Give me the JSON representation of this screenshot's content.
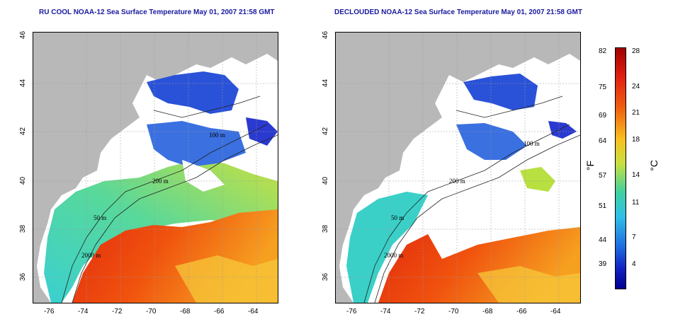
{
  "panels": [
    {
      "title": "RU COOL NOAA-12 Sea Surface Temperature May 01, 2007 21:58 GMT"
    },
    {
      "title": "DECLOUDED NOAA-12 Sea Surface Temperature May 01, 2007 21:58 GMT"
    }
  ],
  "axes": {
    "lon_ticks": [
      "-76",
      "-74",
      "-72",
      "-70",
      "-68",
      "-66",
      "-64"
    ],
    "lat_ticks": [
      "46",
      "44",
      "42",
      "40",
      "38",
      "36"
    ]
  },
  "contours": [
    "100 m",
    "200 m",
    "50 m",
    "2000 m"
  ],
  "colorbar": {
    "fahrenheit_ticks": [
      "82",
      "75",
      "69",
      "64",
      "57",
      "51",
      "44",
      "39"
    ],
    "celsius_ticks": [
      "28",
      "24",
      "21",
      "18",
      "14",
      "11",
      "7",
      "4"
    ],
    "fahrenheit_unit": "°F",
    "celsius_unit": "°C"
  }
}
